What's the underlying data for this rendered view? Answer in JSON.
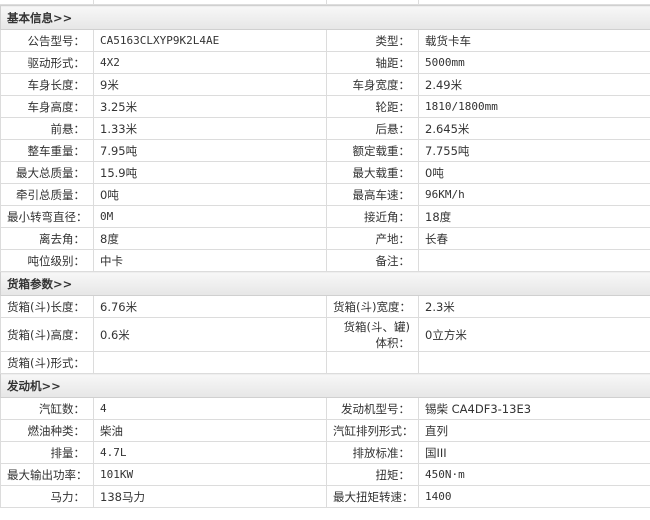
{
  "sections": [
    {
      "title": "基本信息>>",
      "rows": [
        [
          "公告型号：",
          "CA5163CLXYP9K2L4AE",
          "类型：",
          "载货卡车"
        ],
        [
          "驱动形式：",
          "4X2",
          "轴距：",
          "5000mm"
        ],
        [
          "车身长度：",
          "9米",
          "车身宽度：",
          "2.49米"
        ],
        [
          "车身高度：",
          "3.25米",
          "轮距：",
          "1810/1800mm"
        ],
        [
          "前悬：",
          "1.33米",
          "后悬：",
          "2.645米"
        ],
        [
          "整车重量：",
          "7.95吨",
          "额定载重：",
          "7.755吨"
        ],
        [
          "最大总质量：",
          "15.9吨",
          "最大载重：",
          "0吨"
        ],
        [
          "牵引总质量：",
          "0吨",
          "最高车速：",
          "96KM/h"
        ],
        [
          "最小转弯直径：",
          "0M",
          "接近角：",
          "18度"
        ],
        [
          "离去角：",
          "8度",
          "产地：",
          "长春"
        ],
        [
          "吨位级别：",
          "中卡",
          "备注：",
          ""
        ]
      ]
    },
    {
      "title": "货箱参数>>",
      "rows": [
        [
          "货箱(斗)长度：",
          "6.76米",
          "货箱(斗)宽度：",
          "2.3米"
        ],
        [
          "货箱(斗)高度：",
          "0.6米",
          "货箱(斗、罐)体积：",
          "0立方米"
        ],
        [
          "货箱(斗)形式：",
          "",
          "",
          ""
        ]
      ]
    },
    {
      "title": "发动机>>",
      "rows": [
        [
          "汽缸数：",
          "4",
          "发动机型号：",
          "锡柴 CA4DF3-13E3"
        ],
        [
          "燃油种类：",
          "柴油",
          "汽缸排列形式：",
          "直列"
        ],
        [
          "排量：",
          "4.7L",
          "排放标准：",
          "国III"
        ],
        [
          "最大输出功率：",
          "101KW",
          "扭矩：",
          "450N·m"
        ],
        [
          "马力：",
          "138马力",
          "最大扭矩转速：",
          "1400"
        ]
      ]
    }
  ]
}
